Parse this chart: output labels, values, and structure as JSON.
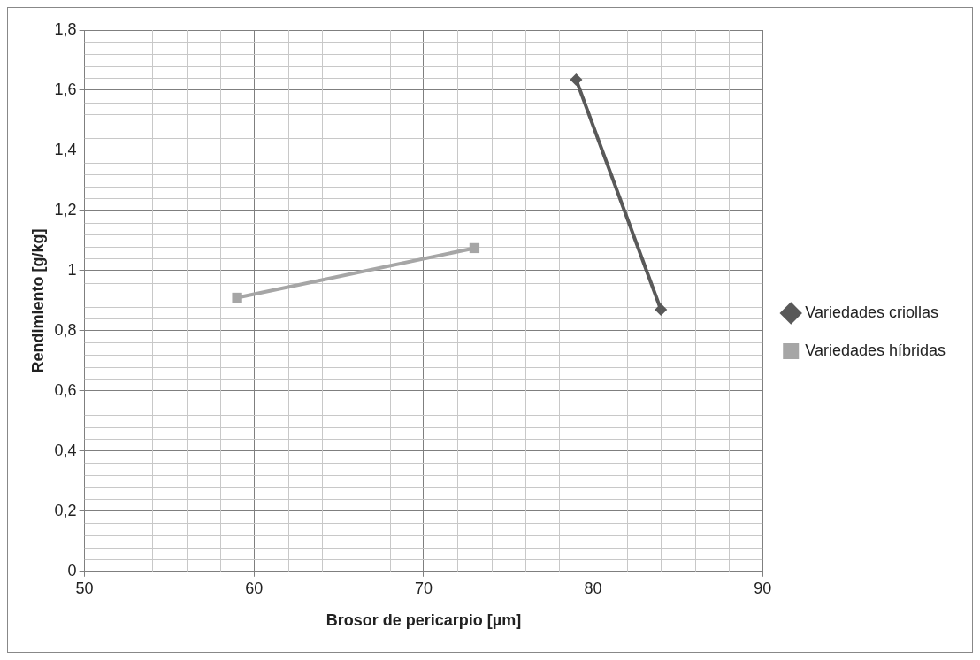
{
  "chart_data": {
    "type": "line",
    "xlabel": "Brosor de pericarpio [µm]",
    "ylabel": "Rendimiento [g/kg]",
    "xlim": [
      50,
      90
    ],
    "xticks": [
      50,
      60,
      70,
      80,
      90
    ],
    "ylim": [
      0,
      1.8
    ],
    "yticks": [
      0,
      {
        "value": 0.2,
        "label": "0,2"
      },
      {
        "value": 0.4,
        "label": "0,4"
      },
      {
        "value": 0.6,
        "label": "0,6"
      },
      {
        "value": 0.8,
        "label": "0,8"
      },
      1,
      {
        "value": 1.2,
        "label": "1,2"
      },
      {
        "value": 1.4,
        "label": "1,4"
      },
      {
        "value": 1.6,
        "label": "1,6"
      },
      {
        "value": 1.8,
        "label": "1,8"
      }
    ],
    "grid": true,
    "legend": "right",
    "line_style": "solid",
    "series": [
      {
        "name": "Variedades criollas",
        "color": "#595959",
        "marker": "diamond",
        "x": [
          79,
          84
        ],
        "values": [
          1.635,
          0.87
        ]
      },
      {
        "name": "Variedades híbridas",
        "color": "#a6a6a6",
        "marker": "square",
        "x": [
          59,
          73
        ],
        "values": [
          0.91,
          1.075
        ]
      }
    ]
  }
}
